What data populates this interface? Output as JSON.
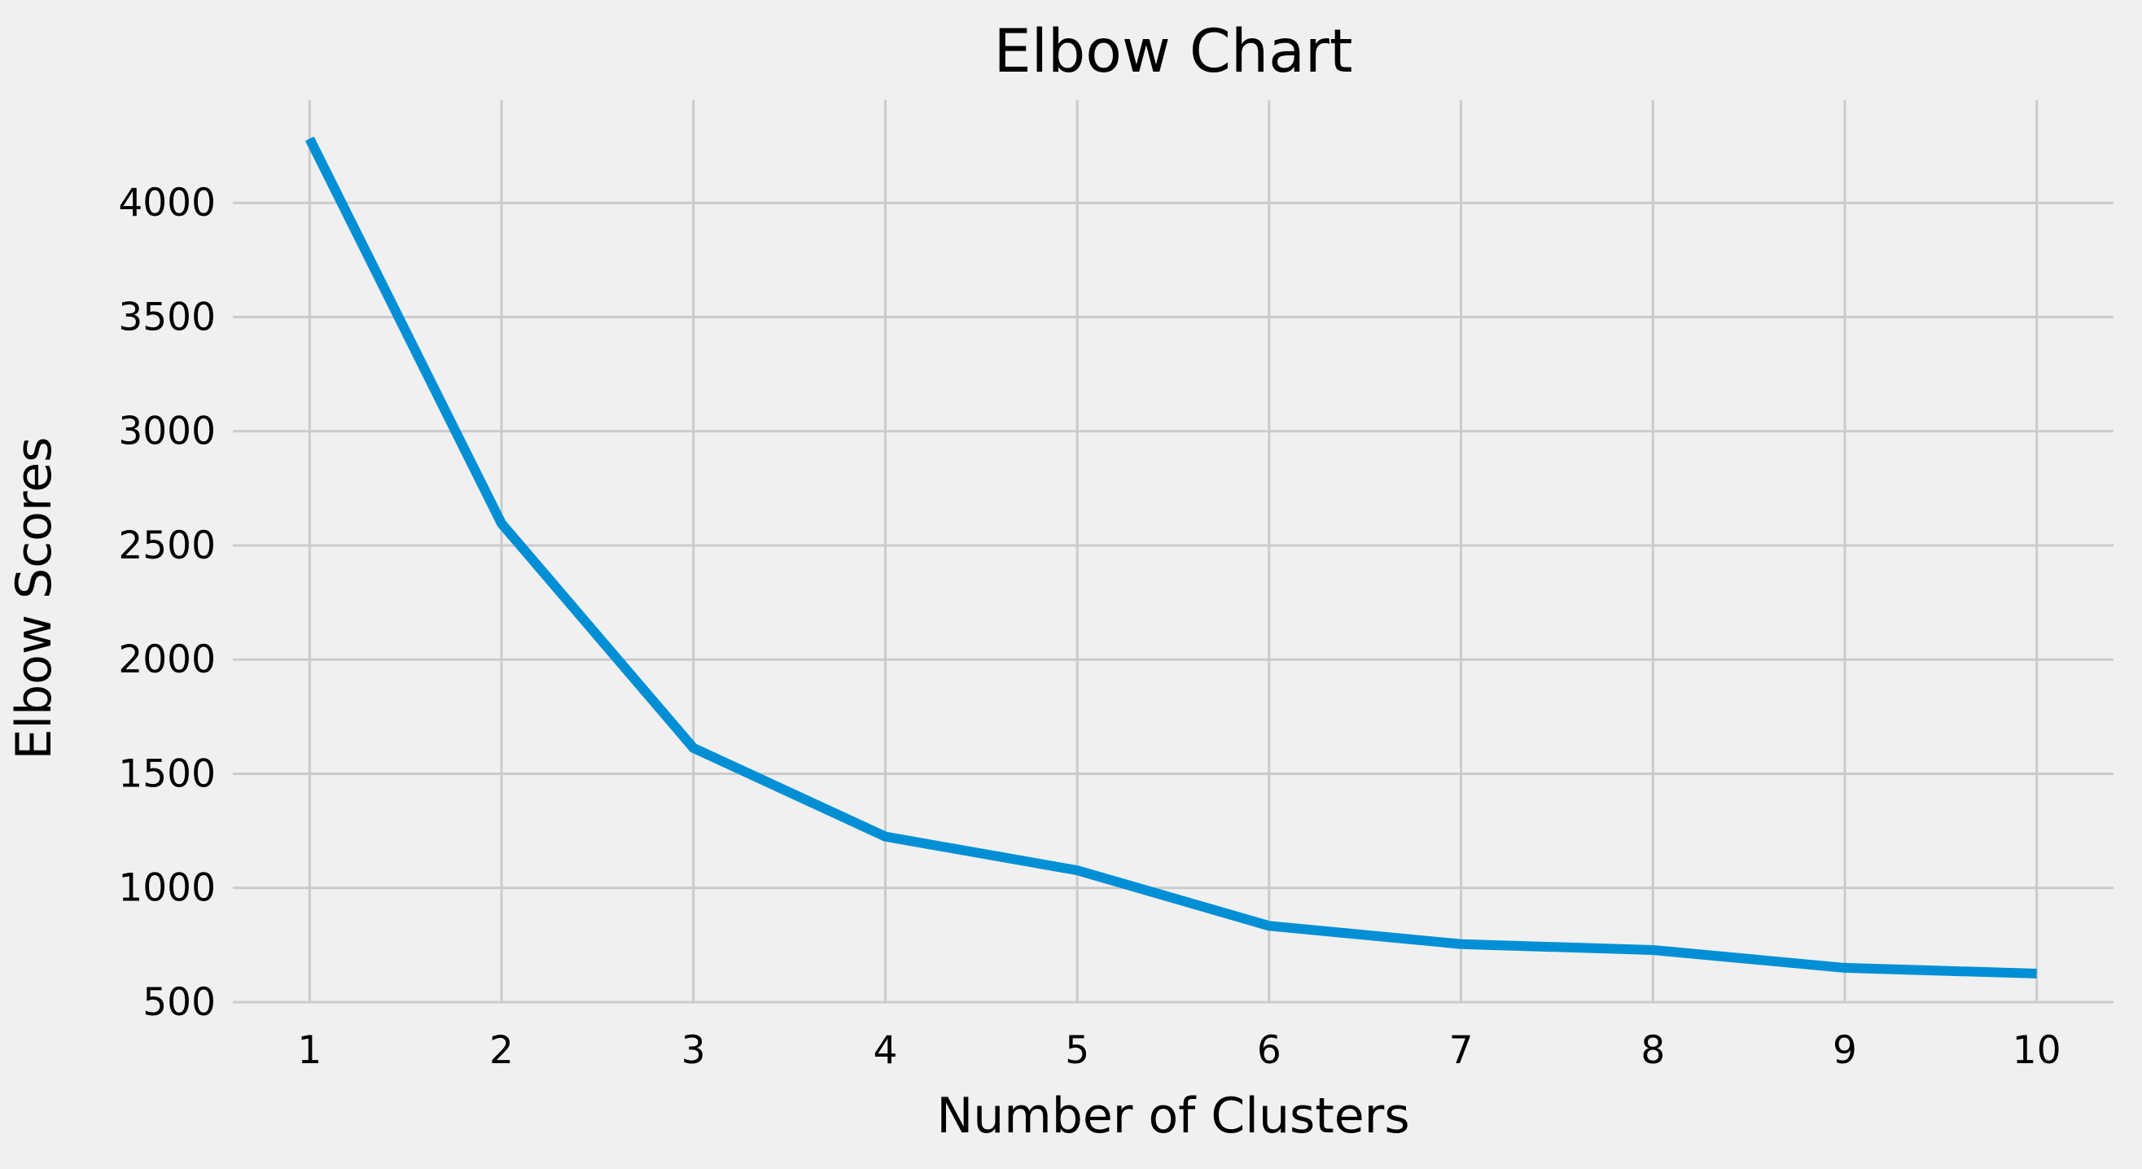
{
  "chart_data": {
    "type": "line",
    "title": "Elbow Chart",
    "xlabel": "Number of Clusters",
    "ylabel": "Elbow Scores",
    "x": [
      1,
      2,
      3,
      4,
      5,
      6,
      7,
      8,
      9,
      10
    ],
    "series": [
      {
        "values": [
          4281,
          2596,
          1613,
          1225,
          1077,
          834,
          754,
          728,
          650,
          625
        ]
      }
    ],
    "xticks": [
      "1",
      "2",
      "3",
      "4",
      "5",
      "6",
      "7",
      "8",
      "9",
      "10"
    ],
    "yticks": [
      "500",
      "1000",
      "1500",
      "2000",
      "2500",
      "3000",
      "3500",
      "4000"
    ],
    "xlim": [
      0.6,
      10.4
    ],
    "ylim": [
      500,
      4450
    ],
    "grid": true,
    "colors": {
      "background": "#f0f0f0",
      "grid": "#cbcbcb",
      "line": "#008fd5"
    }
  }
}
